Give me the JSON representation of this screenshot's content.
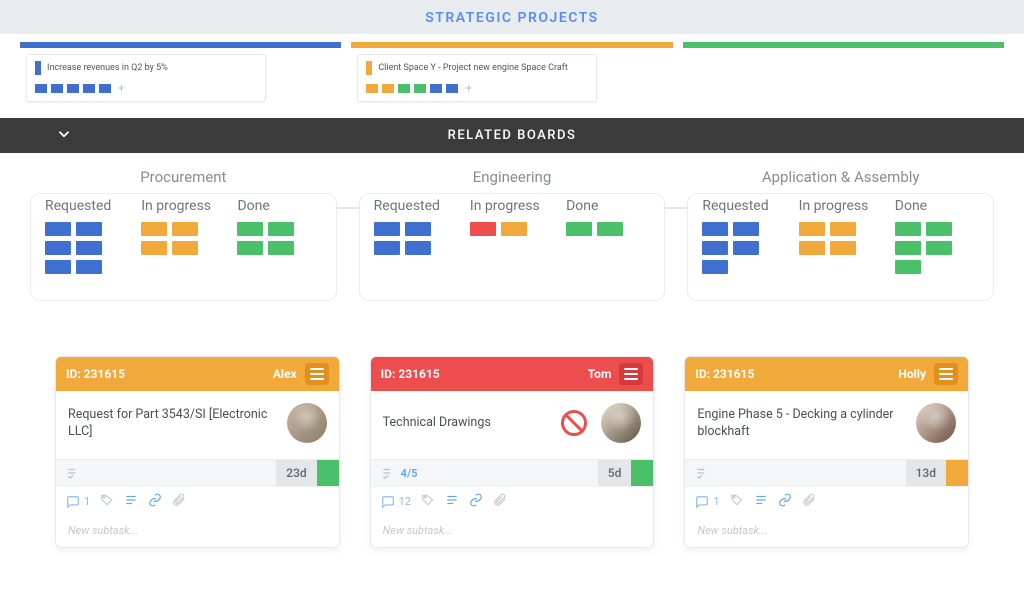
{
  "colors": {
    "blue": "#3f70d0",
    "orange": "#f2a93b",
    "green": "#4bc06b",
    "red": "#ee4d4d",
    "header_bg": "#e9ecef",
    "header_text": "#5a8df0",
    "related_bg": "#3b3b3b",
    "card_orange_ham": "#e28f1e",
    "card_red_ham": "#d63a3a",
    "muted": "#99a1a9"
  },
  "header": {
    "title": "STRATEGIC PROJECTS"
  },
  "swimlanes": [
    {
      "accent": "#3f70d0",
      "card": {
        "mark_color": "#3f70d0",
        "title": "Increase revenues in Q2 by 5%",
        "chips": [
          "#3f70d0",
          "#3f70d0",
          "#3f70d0",
          "#3f70d0",
          "#3f70d0"
        ]
      }
    },
    {
      "accent": "#f2a93b",
      "card": {
        "mark_color": "#f2a93b",
        "title": "Client Space Y - Project new engine Space Craft",
        "chips": [
          "#f2a93b",
          "#f2a93b",
          "#4bc06b",
          "#4bc06b",
          "#3f70d0",
          "#3f70d0"
        ]
      }
    },
    {
      "accent": "#4bc06b",
      "card": null
    }
  ],
  "related_bar": {
    "label": "RELATED BOARDS"
  },
  "boards": [
    {
      "name": "Procurement",
      "columns": [
        {
          "title": "Requested",
          "chips": [
            "#3f70d0",
            "#3f70d0",
            "#3f70d0",
            "#3f70d0",
            "#3f70d0",
            "#3f70d0"
          ]
        },
        {
          "title": "In progress",
          "chips": [
            "#f2a93b",
            "#f2a93b",
            "#f2a93b",
            "#f2a93b"
          ]
        },
        {
          "title": "Done",
          "chips": [
            "#4bc06b",
            "#4bc06b",
            "#4bc06b",
            "#4bc06b"
          ]
        }
      ]
    },
    {
      "name": "Engineering",
      "columns": [
        {
          "title": "Requested",
          "chips": [
            "#3f70d0",
            "#3f70d0",
            "#3f70d0",
            "#3f70d0"
          ]
        },
        {
          "title": "In progress",
          "chips": [
            "#ee4d4d",
            "#f2a93b"
          ]
        },
        {
          "title": "Done",
          "chips": [
            "#4bc06b",
            "#4bc06b"
          ]
        }
      ]
    },
    {
      "name": "Application & Assembly",
      "columns": [
        {
          "title": "Requested",
          "chips": [
            "#3f70d0",
            "#3f70d0",
            "#3f70d0",
            "#3f70d0",
            "#3f70d0"
          ]
        },
        {
          "title": "In progress",
          "chips": [
            "#f2a93b",
            "#f2a93b",
            "#f2a93b",
            "#f2a93b"
          ]
        },
        {
          "title": "Done",
          "chips": [
            "#4bc06b",
            "#4bc06b",
            "#4bc06b",
            "#4bc06b",
            "#4bc06b"
          ]
        }
      ]
    }
  ],
  "cards": [
    {
      "head_color": "#f2a93b",
      "ham_color": "#e28f1e",
      "id_label": "ID: 231615",
      "assignee": "Alex",
      "title": "Request for Part 3543/SI [Electronic LLC]",
      "blocked": false,
      "avatar_variant": "guy1",
      "progress_text": "",
      "duration": "23d",
      "end_chip_color": "#4bc06b",
      "comments": "1",
      "new_subtask_placeholder": "New subtask...",
      "connector_color": "#f2a93b"
    },
    {
      "head_color": "#ee4d4d",
      "ham_color": "#d63a3a",
      "id_label": "ID: 231615",
      "assignee": "Tom",
      "title": "Technical Drawings",
      "blocked": true,
      "avatar_variant": "guy2",
      "progress_text": "4/5",
      "duration": "5d",
      "end_chip_color": "#4bc06b",
      "comments": "12",
      "new_subtask_placeholder": "New subtask...",
      "connector_color": "#ee4d4d"
    },
    {
      "head_color": "#f2a93b",
      "ham_color": "#e28f1e",
      "id_label": "ID: 231615",
      "assignee": "Holly",
      "title": "Engine Phase 5 - Decking a cylinder blockhaft",
      "blocked": false,
      "avatar_variant": "fem",
      "progress_text": "",
      "duration": "13d",
      "end_chip_color": "#f2a93b",
      "comments": "1",
      "new_subtask_placeholder": "New subtask...",
      "connector_color": "#f2a93b"
    }
  ]
}
